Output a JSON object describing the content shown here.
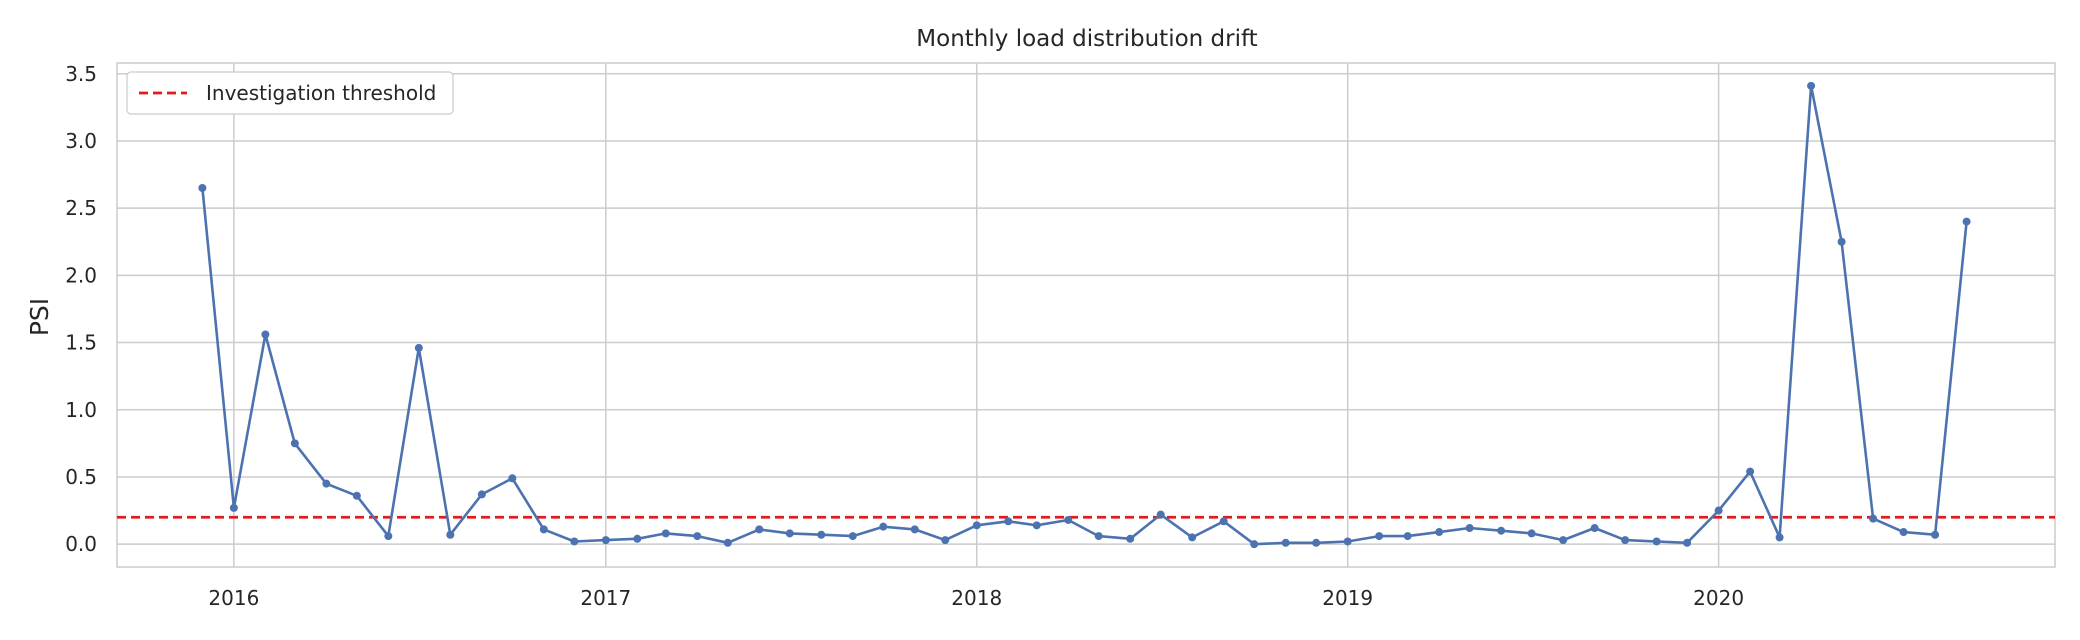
{
  "chart_data": {
    "type": "line",
    "title": "Monthly load distribution drift",
    "xlabel": "",
    "ylabel": "PSI",
    "ylim": [
      -0.17,
      3.58
    ],
    "y_ticks": [
      "0.0",
      "0.5",
      "1.0",
      "1.5",
      "2.0",
      "2.5",
      "3.0",
      "3.5"
    ],
    "x_ticks": [
      "2016",
      "2017",
      "2018",
      "2019",
      "2020"
    ],
    "x_tick_dates": [
      "2016-01-01",
      "2017-01-01",
      "2018-01-01",
      "2019-01-01",
      "2020-01-01"
    ],
    "xlim": [
      "2015-09-08",
      "2020-11-27"
    ],
    "grid": true,
    "legend_position": "top-left",
    "series": [
      {
        "color": "#4c72b0",
        "x": [
          "2015-12-01",
          "2016-01-01",
          "2016-02-01",
          "2016-03-01",
          "2016-04-01",
          "2016-05-01",
          "2016-06-01",
          "2016-07-01",
          "2016-08-01",
          "2016-09-01",
          "2016-10-01",
          "2016-11-01",
          "2016-12-01",
          "2017-01-01",
          "2017-02-01",
          "2017-03-01",
          "2017-04-01",
          "2017-05-01",
          "2017-06-01",
          "2017-07-01",
          "2017-08-01",
          "2017-09-01",
          "2017-10-01",
          "2017-11-01",
          "2017-12-01",
          "2018-01-01",
          "2018-02-01",
          "2018-03-01",
          "2018-04-01",
          "2018-05-01",
          "2018-06-01",
          "2018-07-01",
          "2018-08-01",
          "2018-09-01",
          "2018-10-01",
          "2018-11-01",
          "2018-12-01",
          "2019-01-01",
          "2019-02-01",
          "2019-03-01",
          "2019-04-01",
          "2019-05-01",
          "2019-06-01",
          "2019-07-01",
          "2019-08-01",
          "2019-09-01",
          "2019-10-01",
          "2019-11-01",
          "2019-12-01",
          "2020-01-01",
          "2020-02-01",
          "2020-03-01",
          "2020-04-01",
          "2020-05-01",
          "2020-06-01",
          "2020-07-01",
          "2020-08-01",
          "2020-09-01"
        ],
        "values": [
          2.65,
          0.27,
          1.56,
          0.75,
          0.45,
          0.36,
          0.06,
          1.46,
          0.07,
          0.37,
          0.49,
          0.11,
          0.02,
          0.03,
          0.04,
          0.08,
          0.06,
          0.01,
          0.11,
          0.08,
          0.07,
          0.06,
          0.13,
          0.11,
          0.03,
          0.14,
          0.17,
          0.14,
          0.18,
          0.06,
          0.04,
          0.22,
          0.05,
          0.17,
          0.0,
          0.01,
          0.01,
          0.02,
          0.06,
          0.06,
          0.09,
          0.12,
          0.1,
          0.08,
          0.03,
          0.12,
          0.03,
          0.02,
          0.01,
          0.25,
          0.54,
          0.05,
          3.41,
          2.25,
          0.19,
          0.09,
          0.07,
          2.4
        ]
      }
    ],
    "reference_lines": [
      {
        "name": "Investigation threshold",
        "y": 0.2,
        "color": "#e41a1c",
        "style": "dashed"
      }
    ]
  }
}
